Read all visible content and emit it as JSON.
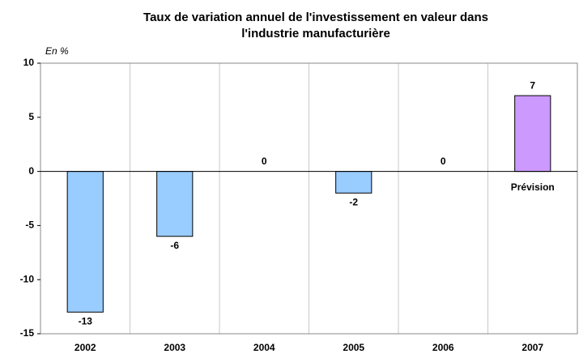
{
  "chart_data": {
    "type": "bar",
    "title": "Taux de variation annuel de l'investissement en valeur dans l'industrie manufacturière",
    "y_label": "En %",
    "categories": [
      "2002",
      "2003",
      "2004",
      "2005",
      "2006",
      "2007"
    ],
    "values": [
      -13,
      -6,
      0,
      -2,
      0,
      7
    ],
    "colors": [
      "#99ccff",
      "#99ccff",
      "#99ccff",
      "#99ccff",
      "#99ccff",
      "#cc99ff"
    ],
    "ylim": [
      -15,
      10
    ],
    "yticks": [
      -15,
      -10,
      -5,
      0,
      5,
      10
    ],
    "grid": true,
    "annotations": [
      {
        "text": "Prévision",
        "x": "2007"
      }
    ]
  }
}
